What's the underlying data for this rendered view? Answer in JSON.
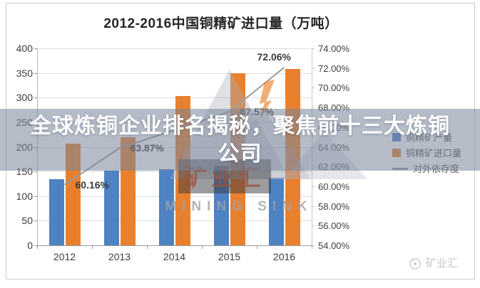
{
  "chart_data": {
    "type": "bar+line combo",
    "title": "2012-2016中国铜精矿进口量（万吨）",
    "categories": [
      "2012",
      "2013",
      "2014",
      "2015",
      "2016"
    ],
    "series": [
      {
        "name": "铜精矿产量",
        "chart": "bar",
        "axis": "left",
        "color": "#4d82c3",
        "values": [
          135,
          152,
          155,
          162,
          137
        ]
      },
      {
        "name": "铜精矿进口量",
        "chart": "bar",
        "axis": "left",
        "color": "#e8802e",
        "values": [
          207,
          220,
          303,
          349,
          358
        ]
      },
      {
        "name": "对外依存度",
        "chart": "line",
        "axis": "right",
        "color": "#9b9b9b",
        "values": [
          60.16,
          63.87,
          65.7,
          67.57,
          72.06
        ],
        "point_labels": [
          "60.16%",
          "63.87%",
          "",
          "67.57%",
          "72.06%"
        ]
      }
    ],
    "left_axis": {
      "min": 0,
      "max": 400,
      "step": 50,
      "tick_labels": [
        "400",
        "350",
        "300",
        "250",
        "200",
        "150",
        "100",
        "50",
        "0"
      ]
    },
    "right_axis": {
      "min": 54,
      "max": 74,
      "step": 2,
      "tick_labels": [
        "74.00%",
        "72.00%",
        "70.00%",
        "68.00%",
        "66.00%",
        "64.00%",
        "62.00%",
        "60.00%",
        "58.00%",
        "56.00%",
        "54.00%"
      ]
    },
    "legend": {
      "position": "right",
      "entries": [
        "铜精矿产量",
        "铜精矿进口量",
        "对外依存度"
      ]
    },
    "grid": true
  },
  "overlay_banner": {
    "line1": "全球炼铜企业排名揭秘，聚焦前十三大炼铜",
    "line2": "公司",
    "text_color": "#ffffff",
    "bg_color": "rgba(120,133,155,0.55)"
  },
  "watermark": {
    "logo_text": "矿业汇",
    "logo_subtext": "MINING SINK",
    "corner_text": "矿业汇"
  },
  "colors": {
    "bar_blue": "#4d82c3",
    "bar_orange": "#e8802e",
    "dependence_line": "#9b9b9b",
    "gridline": "#dcdcdc",
    "axis_text": "#3f3f3f",
    "legend_text": "#595959"
  }
}
